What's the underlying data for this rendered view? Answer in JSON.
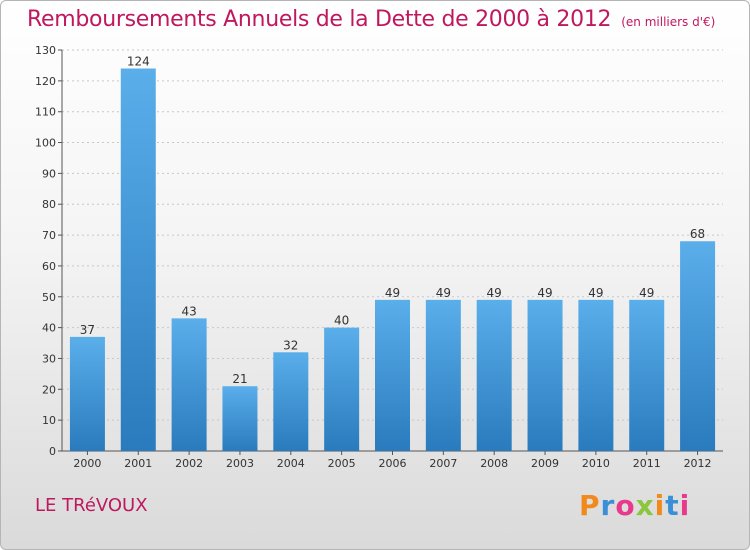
{
  "title": "Remboursements Annuels de la Dette de 2000 à 2012",
  "unit": "(en milliers d'€)",
  "place": "LE TRéVOUX",
  "logo": {
    "text": "Proxiti",
    "colors": [
      "#f08a1d",
      "#3a8fd6",
      "#e83a8c",
      "#8cc63f",
      "#f08a1d",
      "#3a8fd6",
      "#e83a8c"
    ]
  },
  "colors": {
    "title": "#c0185e",
    "bar_top": "#5aaeea",
    "bar_bottom": "#2a7bbd"
  },
  "chart_data": {
    "type": "bar",
    "categories": [
      "2000",
      "2001",
      "2002",
      "2003",
      "2004",
      "2005",
      "2006",
      "2007",
      "2008",
      "2009",
      "2010",
      "2011",
      "2012"
    ],
    "values": [
      37,
      124,
      43,
      21,
      32,
      40,
      49,
      49,
      49,
      49,
      49,
      49,
      68
    ],
    "yticks": [
      0,
      10,
      20,
      30,
      40,
      50,
      60,
      70,
      80,
      90,
      100,
      110,
      120,
      130
    ],
    "ylim": [
      0,
      130
    ],
    "grid": true,
    "title": "Remboursements Annuels de la Dette de 2000 à 2012",
    "xlabel": "",
    "ylabel": ""
  }
}
